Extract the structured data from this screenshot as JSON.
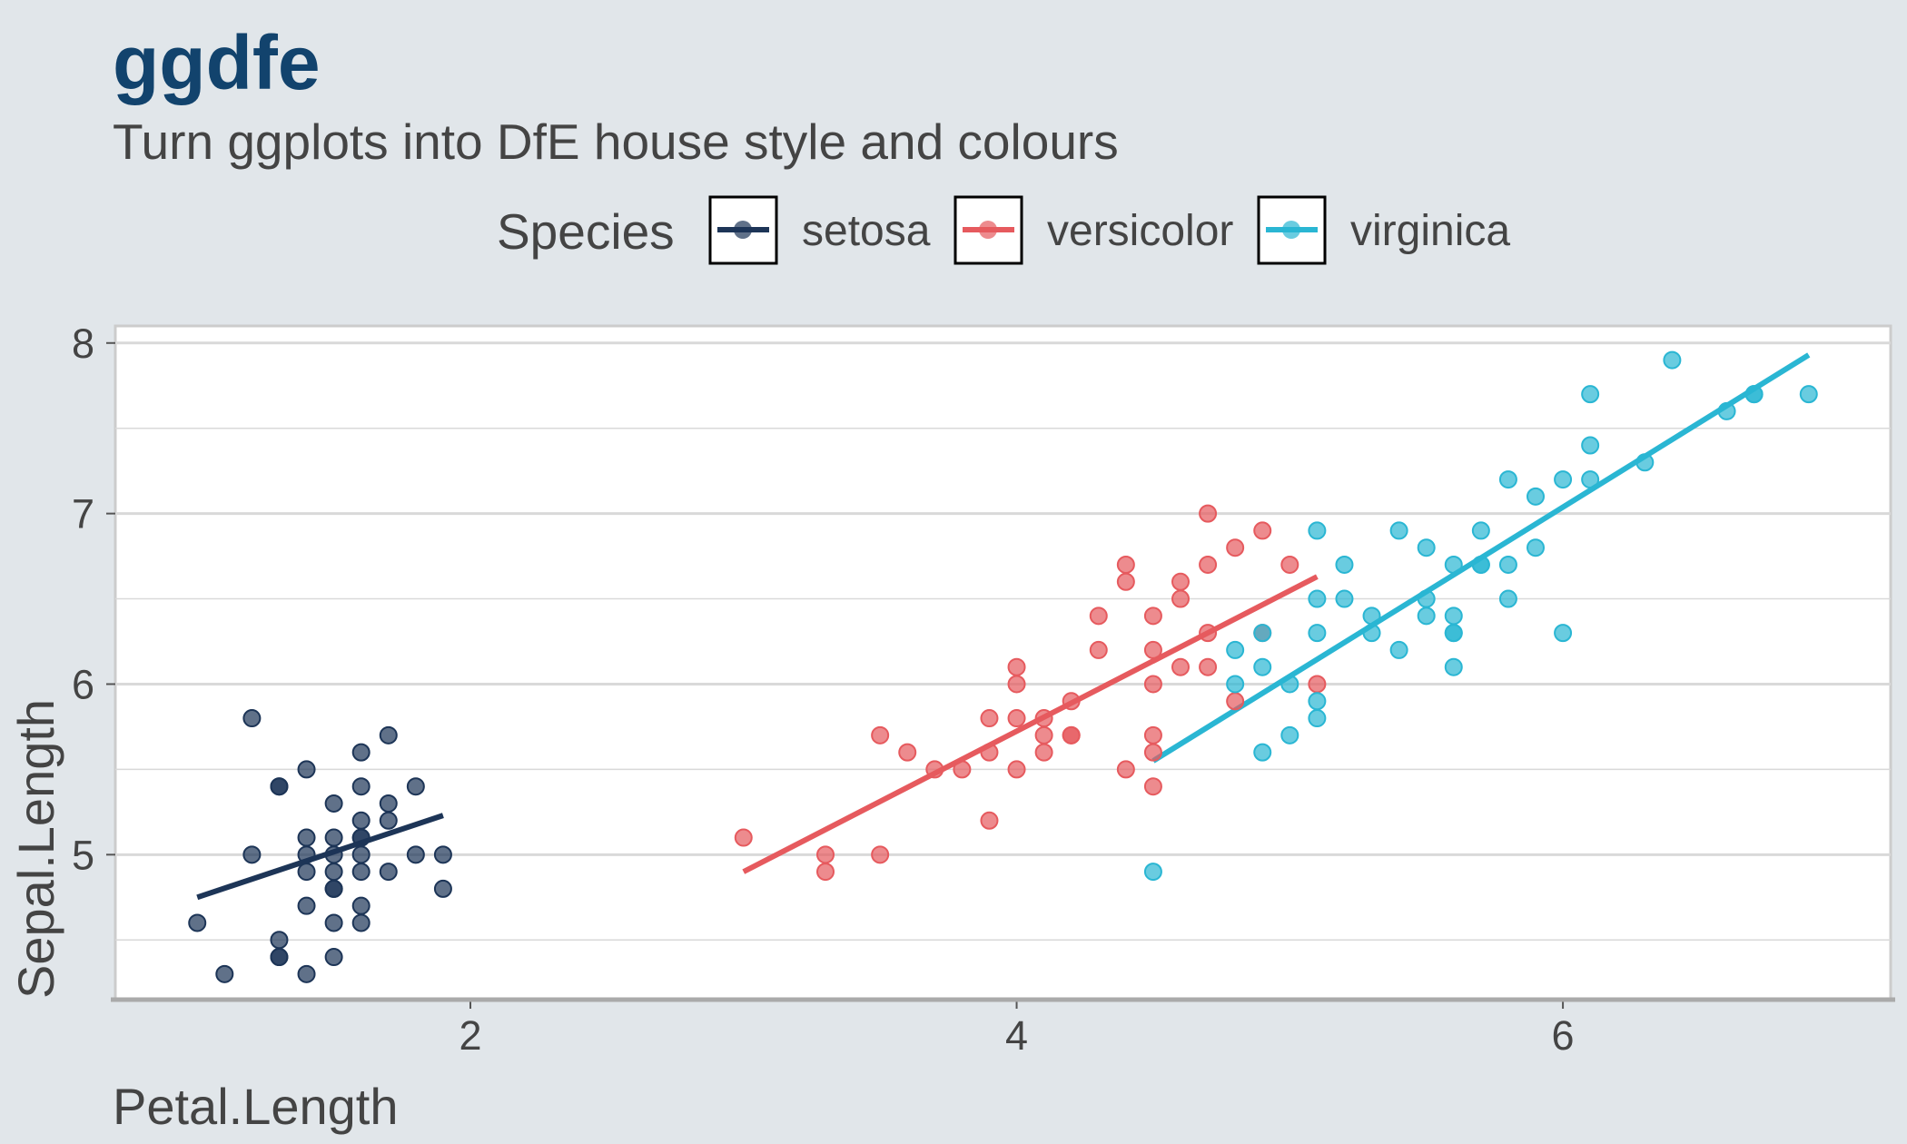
{
  "title": "ggdfe",
  "subtitle": "Turn ggplots into DfE house style and colours",
  "legend": {
    "title": "Species",
    "items": [
      {
        "label": "setosa",
        "color": "#1d3557"
      },
      {
        "label": "versicolor",
        "color": "#e65a5e"
      },
      {
        "label": "virginica",
        "color": "#2ab6d3"
      }
    ]
  },
  "chart_data": {
    "type": "scatter",
    "xlabel": "Petal.Length",
    "ylabel": "Sepal.Length",
    "xlim": [
      0.7,
      7.2
    ],
    "ylim": [
      4.15,
      8.1
    ],
    "xticks": [
      2,
      4,
      6
    ],
    "yticks": [
      5,
      6,
      7,
      8
    ],
    "grid": true,
    "legend_position": "top",
    "point_style": {
      "opacity": 0.7,
      "outline": "same-as-fill"
    },
    "series": [
      {
        "name": "setosa",
        "color": "#1d3557",
        "points": [
          [
            1.0,
            4.6
          ],
          [
            1.1,
            4.3
          ],
          [
            1.2,
            5.0
          ],
          [
            1.2,
            5.8
          ],
          [
            1.3,
            5.4
          ],
          [
            1.3,
            4.5
          ],
          [
            1.3,
            4.4
          ],
          [
            1.3,
            4.4
          ],
          [
            1.4,
            5.5
          ],
          [
            1.4,
            5.0
          ],
          [
            1.4,
            4.7
          ],
          [
            1.5,
            4.6
          ],
          [
            1.4,
            4.9
          ],
          [
            1.5,
            4.8
          ],
          [
            1.5,
            4.8
          ],
          [
            1.6,
            5.2
          ],
          [
            1.6,
            5.1
          ],
          [
            1.6,
            5.1
          ],
          [
            1.6,
            5.0
          ],
          [
            1.6,
            4.9
          ],
          [
            1.4,
            5.1
          ],
          [
            1.5,
            5.0
          ],
          [
            1.5,
            5.1
          ],
          [
            1.5,
            5.3
          ],
          [
            1.6,
            5.4
          ],
          [
            1.6,
            5.6
          ],
          [
            1.7,
            5.2
          ],
          [
            1.7,
            5.3
          ],
          [
            1.7,
            4.9
          ],
          [
            1.8,
            5.4
          ],
          [
            1.8,
            5.0
          ],
          [
            1.9,
            5.0
          ],
          [
            1.9,
            4.8
          ],
          [
            1.6,
            4.6
          ],
          [
            1.5,
            4.4
          ],
          [
            1.4,
            4.3
          ],
          [
            1.7,
            5.7
          ],
          [
            1.3,
            5.4
          ],
          [
            1.5,
            4.9
          ],
          [
            1.6,
            4.7
          ]
        ],
        "trend": {
          "x": [
            1.0,
            1.9
          ],
          "y": [
            4.75,
            5.23
          ]
        }
      },
      {
        "name": "versicolor",
        "color": "#e65a5e",
        "points": [
          [
            3.0,
            5.1
          ],
          [
            3.3,
            4.9
          ],
          [
            3.3,
            5.0
          ],
          [
            3.5,
            5.7
          ],
          [
            3.5,
            5.0
          ],
          [
            3.6,
            5.6
          ],
          [
            3.7,
            5.5
          ],
          [
            3.8,
            5.5
          ],
          [
            3.9,
            5.8
          ],
          [
            3.9,
            5.6
          ],
          [
            3.9,
            5.2
          ],
          [
            4.0,
            6.0
          ],
          [
            4.0,
            5.8
          ],
          [
            4.0,
            5.5
          ],
          [
            4.0,
            6.1
          ],
          [
            4.1,
            5.8
          ],
          [
            4.1,
            5.7
          ],
          [
            4.1,
            5.6
          ],
          [
            4.2,
            5.7
          ],
          [
            4.2,
            5.9
          ],
          [
            4.2,
            5.7
          ],
          [
            4.3,
            6.2
          ],
          [
            4.3,
            6.4
          ],
          [
            4.4,
            6.6
          ],
          [
            4.4,
            6.7
          ],
          [
            4.4,
            5.5
          ],
          [
            4.5,
            6.4
          ],
          [
            4.5,
            5.7
          ],
          [
            4.5,
            6.2
          ],
          [
            4.5,
            6.0
          ],
          [
            4.5,
            5.6
          ],
          [
            4.5,
            5.4
          ],
          [
            4.6,
            6.6
          ],
          [
            4.6,
            6.5
          ],
          [
            4.6,
            6.1
          ],
          [
            4.7,
            7.0
          ],
          [
            4.7,
            6.7
          ],
          [
            4.7,
            6.3
          ],
          [
            4.7,
            6.1
          ],
          [
            4.8,
            6.8
          ],
          [
            4.8,
            5.9
          ],
          [
            4.9,
            6.9
          ],
          [
            4.9,
            6.3
          ],
          [
            5.0,
            6.7
          ],
          [
            5.1,
            6.0
          ]
        ],
        "trend": {
          "x": [
            3.0,
            5.1
          ],
          "y": [
            4.9,
            6.63
          ]
        }
      },
      {
        "name": "virginica",
        "color": "#2ab6d3",
        "points": [
          [
            4.5,
            4.9
          ],
          [
            4.8,
            6.2
          ],
          [
            4.8,
            6.0
          ],
          [
            4.9,
            5.6
          ],
          [
            4.9,
            6.3
          ],
          [
            4.9,
            6.1
          ],
          [
            5.0,
            6.0
          ],
          [
            5.0,
            5.7
          ],
          [
            5.1,
            6.3
          ],
          [
            5.1,
            6.5
          ],
          [
            5.1,
            5.8
          ],
          [
            5.1,
            5.9
          ],
          [
            5.1,
            6.9
          ],
          [
            5.2,
            6.7
          ],
          [
            5.2,
            6.5
          ],
          [
            5.3,
            6.4
          ],
          [
            5.3,
            6.3
          ],
          [
            5.4,
            6.9
          ],
          [
            5.4,
            6.2
          ],
          [
            5.5,
            6.8
          ],
          [
            5.5,
            6.4
          ],
          [
            5.5,
            6.5
          ],
          [
            5.6,
            6.3
          ],
          [
            5.6,
            6.4
          ],
          [
            5.6,
            6.1
          ],
          [
            5.6,
            6.3
          ],
          [
            5.6,
            6.7
          ],
          [
            5.7,
            6.7
          ],
          [
            5.7,
            6.9
          ],
          [
            5.8,
            7.2
          ],
          [
            5.8,
            6.7
          ],
          [
            5.8,
            6.5
          ],
          [
            5.9,
            6.8
          ],
          [
            6.0,
            7.2
          ],
          [
            6.0,
            6.3
          ],
          [
            6.1,
            7.4
          ],
          [
            6.1,
            7.7
          ],
          [
            6.1,
            7.2
          ],
          [
            6.3,
            7.3
          ],
          [
            6.4,
            7.9
          ],
          [
            6.6,
            7.6
          ],
          [
            6.7,
            7.7
          ],
          [
            6.7,
            7.7
          ],
          [
            6.9,
            7.7
          ],
          [
            5.7,
            6.7
          ],
          [
            5.9,
            7.1
          ]
        ],
        "trend": {
          "x": [
            4.5,
            6.9
          ],
          "y": [
            5.55,
            7.93
          ]
        }
      }
    ]
  }
}
